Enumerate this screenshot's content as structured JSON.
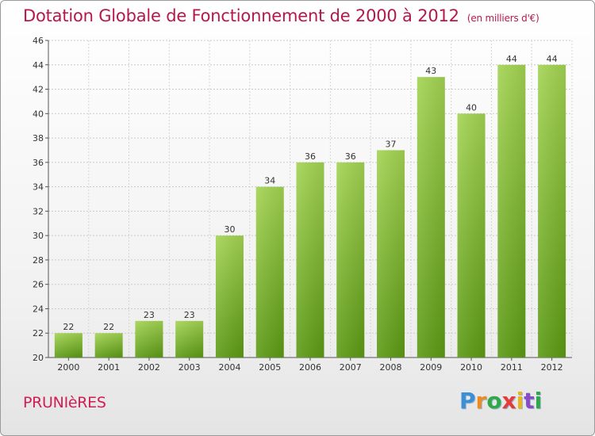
{
  "title": "Dotation Globale de Fonctionnement de 2000 à 2012",
  "unit": "(en milliers d'€)",
  "commune": "PRUNIèRES",
  "logo": {
    "brand": "Proxiti"
  },
  "colors": {
    "bar_top": "#a0d04e",
    "bar_bottom": "#5f9e17",
    "title": "#b5174f"
  },
  "chart_data": {
    "type": "bar",
    "title": "Dotation Globale de Fonctionnement de 2000 à 2012",
    "subtitle": "(en milliers d'€)",
    "categories": [
      "2000",
      "2001",
      "2002",
      "2003",
      "2004",
      "2005",
      "2006",
      "2007",
      "2008",
      "2009",
      "2010",
      "2011",
      "2012"
    ],
    "values": [
      22,
      22,
      23,
      23,
      30,
      34,
      36,
      36,
      37,
      43,
      40,
      44,
      44
    ],
    "ylim": [
      20,
      46
    ],
    "yticks": [
      20,
      22,
      24,
      26,
      28,
      30,
      32,
      34,
      36,
      38,
      40,
      42,
      44,
      46
    ],
    "grid": true
  }
}
